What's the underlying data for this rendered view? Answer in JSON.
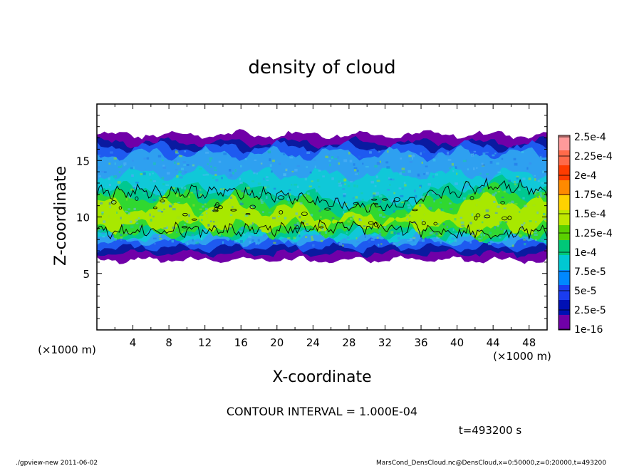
{
  "chart_data": {
    "type": "heatmap",
    "title": "density of cloud",
    "xlabel": "X-coordinate",
    "ylabel": "Z-coordinate",
    "x_unit_left": "(×1000 m)",
    "x_unit_right": "(×1000 m)",
    "xlim": [
      0,
      50
    ],
    "ylim": [
      0,
      20
    ],
    "xticks": [
      "4",
      "8",
      "12",
      "16",
      "20",
      "24",
      "28",
      "32",
      "36",
      "40",
      "44",
      "48"
    ],
    "yticks": [
      "5",
      "10",
      "15"
    ],
    "colorbar": {
      "labels": [
        "2.5e-4",
        "2.25e-4",
        "2e-4",
        "1.75e-4",
        "1.5e-4",
        "1.25e-4",
        "1e-4",
        "7.5e-5",
        "5e-5",
        "2.5e-5",
        "1e-16"
      ],
      "colors": [
        "#ff9a9a",
        "#ff6a4a",
        "#ff3c00",
        "#ff8a00",
        "#ffd200",
        "#bfe800",
        "#5ad000",
        "#00c878",
        "#00c8d2",
        "#0088ff",
        "#1a3cf0",
        "#0010b4",
        "#7000a8"
      ]
    },
    "layers": [
      {
        "name": "violet",
        "color": "#7000a8",
        "z_top": 17.3,
        "z_bottom": 6.2
      },
      {
        "name": "navy",
        "color": "#0a1aa0",
        "z_top": 16.6,
        "z_bottom": 6.8
      },
      {
        "name": "blue",
        "color": "#1e5af0",
        "z_top": 16.2,
        "z_bottom": 7.3
      },
      {
        "name": "lightblue",
        "color": "#2ea0f0",
        "z_top": 15.6,
        "z_bottom": 7.8
      },
      {
        "name": "cyan",
        "color": "#10c8d8",
        "z_top": 13.8,
        "z_bottom": 8.2
      },
      {
        "name": "teal",
        "color": "#00c890",
        "z_top": 12.5,
        "z_bottom": 8.4
      },
      {
        "name": "green",
        "color": "#30d830",
        "z_top": 11.8,
        "z_bottom": 8.6
      },
      {
        "name": "lime",
        "color": "#a8e800",
        "z_top": 11.0,
        "z_bottom": 9.2
      }
    ],
    "contour_interval_label": "CONTOUR INTERVAL = 1.000E-04",
    "time_label": "t=493200 s"
  },
  "footer": {
    "left": "./gpview-new  2011-06-02",
    "right": "MarsCond_DensCloud.nc@DensCloud,x=0:50000,z=0:20000,t=493200"
  }
}
